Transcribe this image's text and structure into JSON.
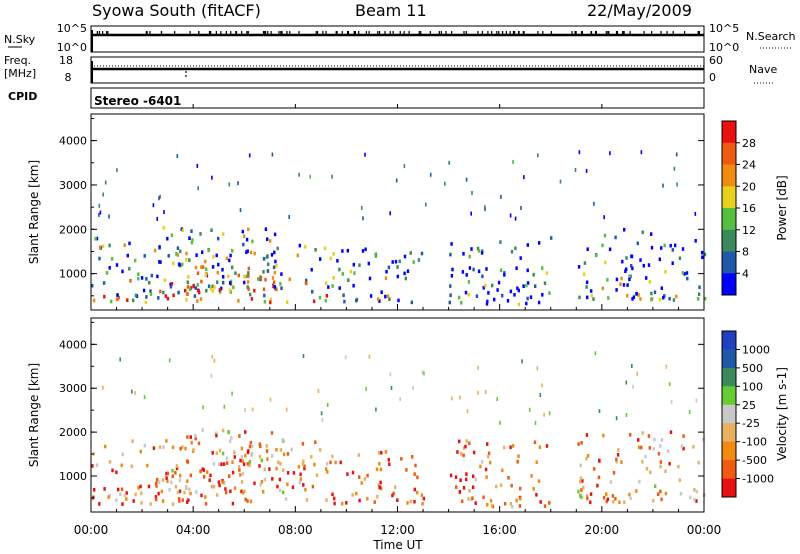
{
  "header": {
    "station": "Syowa South (fitACF)",
    "beam": "Beam 11",
    "date": "22/May/2009"
  },
  "top_panels": {
    "nsky_label": "N.Sky",
    "nsky_ticks": [
      "10^5",
      "10^0"
    ],
    "nsearch_label": "N.Search",
    "nsearch_ticks": [
      "10^5",
      "10^0"
    ],
    "freq_label_line1": "Freq.",
    "freq_label_line2": "[MHz]",
    "freq_ticks": [
      "18",
      "8"
    ],
    "nave_label": "Nave",
    "nave_ticks": [
      "60",
      "0"
    ],
    "cpid_label": "CPID",
    "cpid_value": "Stereo  -6401"
  },
  "colors": {
    "power": [
      "#0000ff",
      "#1f5aa8",
      "#3b8a5c",
      "#55c040",
      "#e6d020",
      "#f08a10",
      "#ee5a10",
      "#e81010"
    ],
    "velocity": [
      "#e81010",
      "#ee5a10",
      "#f08a10",
      "#e8b060",
      "#c8c8c8",
      "#66cc33",
      "#3b8a5c",
      "#1f5aa8",
      "#2040c0"
    ],
    "ground_scatter": "#808080"
  },
  "chart_data": [
    {
      "type": "heatmap",
      "title": "",
      "xlabel": "",
      "ylabel": "Slant Range [km]",
      "x_ticks": [
        "00:00",
        "04:00",
        "08:00",
        "12:00",
        "16:00",
        "20:00",
        "00:00"
      ],
      "xlim_hours": [
        0,
        24
      ],
      "y_ticks": [
        "1000",
        "2000",
        "3000",
        "4000"
      ],
      "ylim_km": [
        180,
        4600
      ],
      "colorbar_label": "Power [dB]",
      "colorbar_ticks": [
        "4",
        "8",
        "12",
        "16",
        "20",
        "24",
        "28"
      ],
      "colorbar_range": [
        0,
        32
      ],
      "regions": [
        {
          "t0": 0.0,
          "t1": 9.5,
          "r0": 350,
          "r1": 1800,
          "level": 0.55
        },
        {
          "t0": 2.5,
          "t1": 7.5,
          "r0": 600,
          "r1": 2050,
          "level": 0.55
        },
        {
          "t0": 9.3,
          "t1": 13.0,
          "r0": 350,
          "r1": 1600,
          "level": 0.35
        },
        {
          "t0": 14.0,
          "t1": 18.0,
          "r0": 300,
          "r1": 1850,
          "level": 0.2
        },
        {
          "t0": 19.0,
          "t1": 24.0,
          "r0": 400,
          "r1": 2000,
          "level": 0.3
        }
      ]
    },
    {
      "type": "heatmap",
      "title": "",
      "xlabel": "Time UT",
      "ylabel": "Slant Range [km]",
      "x_ticks": [
        "00:00",
        "04:00",
        "08:00",
        "12:00",
        "16:00",
        "20:00",
        "00:00"
      ],
      "xlim_hours": [
        0,
        24
      ],
      "y_ticks": [
        "1000",
        "2000",
        "3000",
        "4000"
      ],
      "ylim_km": [
        180,
        4600
      ],
      "colorbar_label": "Velocity [m s-1]",
      "colorbar_ticks": [
        "1000",
        "500",
        "100",
        "25",
        "-25",
        "-100",
        "-500",
        "-1000"
      ],
      "colorbar_range": [
        -1200,
        1200
      ],
      "regions": [
        {
          "t0": 0.0,
          "t1": 9.5,
          "r0": 350,
          "r1": 1800,
          "level": -0.45
        },
        {
          "t0": 2.5,
          "t1": 7.5,
          "r0": 600,
          "r1": 2050,
          "level": -0.3
        },
        {
          "t0": 9.3,
          "t1": 13.0,
          "r0": 350,
          "r1": 1600,
          "level": -0.55
        },
        {
          "t0": 14.0,
          "t1": 18.0,
          "r0": 300,
          "r1": 1850,
          "level": -0.5
        },
        {
          "t0": 19.0,
          "t1": 24.0,
          "r0": 400,
          "r1": 2000,
          "level": -0.35
        }
      ]
    }
  ]
}
